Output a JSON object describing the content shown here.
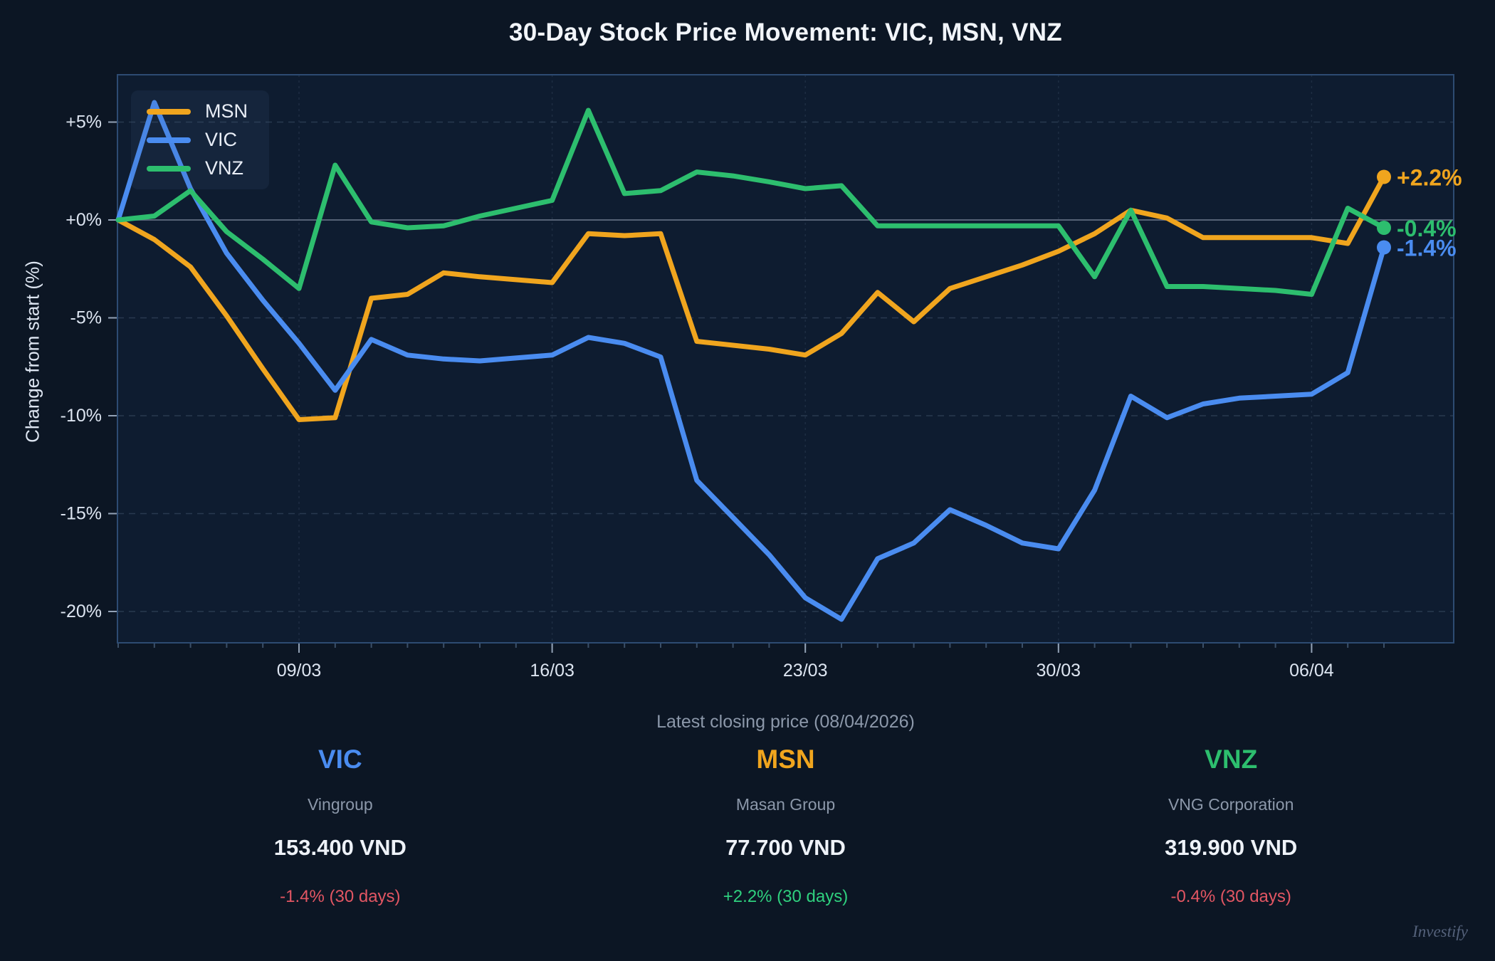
{
  "title": "30-Day Stock Price Movement: VIC, MSN, VNZ",
  "y_axis_label": "Change from start (%)",
  "subtitle": "Latest closing price (08/04/2026)",
  "watermark": "Investify",
  "chart_data": {
    "type": "line",
    "title": "30-Day Stock Price Movement: VIC, MSN, VNZ",
    "xlabel": "",
    "ylabel": "Change from start (%)",
    "ylim": [
      -21.6,
      7.4
    ],
    "grid": true,
    "legend_position": "top-left",
    "x": [
      "04/03",
      "05/03",
      "06/03",
      "07/03",
      "08/03",
      "09/03",
      "10/03",
      "11/03",
      "12/03",
      "13/03",
      "14/03",
      "15/03",
      "16/03",
      "17/03",
      "18/03",
      "19/03",
      "20/03",
      "21/03",
      "22/03",
      "23/03",
      "24/03",
      "25/03",
      "26/03",
      "27/03",
      "28/03",
      "29/03",
      "30/03",
      "31/03",
      "01/04",
      "02/04",
      "03/04",
      "04/04",
      "05/04",
      "06/04",
      "07/04",
      "08/04"
    ],
    "x_ticks": [
      {
        "index": 5,
        "label": "09/03"
      },
      {
        "index": 12,
        "label": "16/03"
      },
      {
        "index": 19,
        "label": "23/03"
      },
      {
        "index": 26,
        "label": "30/03"
      },
      {
        "index": 33,
        "label": "06/04"
      }
    ],
    "y_ticks": [
      {
        "value": 5,
        "label": "+5%"
      },
      {
        "value": 0,
        "label": "+0%"
      },
      {
        "value": -5,
        "label": "-5%"
      },
      {
        "value": -10,
        "label": "-10%"
      },
      {
        "value": -15,
        "label": "-15%"
      },
      {
        "value": -20,
        "label": "-20%"
      }
    ],
    "legend_order": [
      "MSN",
      "VIC",
      "VNZ"
    ],
    "series": [
      {
        "name": "MSN",
        "color": "#f0a51e",
        "end_label": "+2.2%",
        "values": [
          0,
          -1.0,
          -2.4,
          -4.9,
          -7.6,
          -10.2,
          -10.1,
          -4.0,
          -3.8,
          -2.7,
          -2.9,
          -3.05,
          -3.2,
          -0.7,
          -0.8,
          -0.7,
          -6.2,
          -6.4,
          -6.6,
          -6.9,
          -5.8,
          -3.7,
          -5.2,
          -3.5,
          -2.9,
          -2.3,
          -1.6,
          -0.7,
          0.5,
          0.1,
          -0.9,
          -0.9,
          -0.9,
          -0.9,
          -1.2,
          2.2
        ]
      },
      {
        "name": "VIC",
        "color": "#4a8cf0",
        "end_label": "-1.4%",
        "values": [
          0,
          6.0,
          1.6,
          -1.7,
          -4.1,
          -6.3,
          -8.7,
          -6.1,
          -6.9,
          -7.1,
          -7.2,
          -7.05,
          -6.9,
          -6.0,
          -6.3,
          -7.0,
          -13.3,
          -15.2,
          -17.1,
          -19.3,
          -20.4,
          -17.3,
          -16.5,
          -14.8,
          -15.6,
          -16.5,
          -16.8,
          -13.8,
          -9.0,
          -10.1,
          -9.4,
          -9.1,
          -9.0,
          -8.9,
          -7.8,
          -1.4
        ]
      },
      {
        "name": "VNZ",
        "color": "#2dbe6e",
        "end_label": "-0.4%",
        "values": [
          0,
          0.2,
          1.5,
          -0.6,
          -2.0,
          -3.5,
          2.8,
          -0.1,
          -0.4,
          -0.3,
          0.2,
          0.6,
          1.0,
          5.6,
          1.35,
          1.5,
          2.45,
          2.25,
          1.95,
          1.6,
          1.75,
          -0.3,
          -0.3,
          -0.3,
          -0.3,
          -0.3,
          -0.3,
          -2.9,
          0.5,
          -3.4,
          -3.4,
          -3.5,
          -3.6,
          -3.8,
          0.6,
          -0.4
        ]
      }
    ]
  },
  "cards": [
    {
      "ticker": "VIC",
      "ticker_color": "#4a8cf0",
      "company": "Vingroup",
      "price": "153.400 VND",
      "change": "-1.4% (30 days)",
      "change_color": "#e25663"
    },
    {
      "ticker": "MSN",
      "ticker_color": "#f0a51e",
      "company": "Masan Group",
      "price": "77.700 VND",
      "change": "+2.2% (30 days)",
      "change_color": "#2fd07e"
    },
    {
      "ticker": "VNZ",
      "ticker_color": "#2dbe6e",
      "company": "VNG Corporation",
      "price": "319.900 VND",
      "change": "-0.4% (30 days)",
      "change_color": "#e25663"
    }
  ]
}
